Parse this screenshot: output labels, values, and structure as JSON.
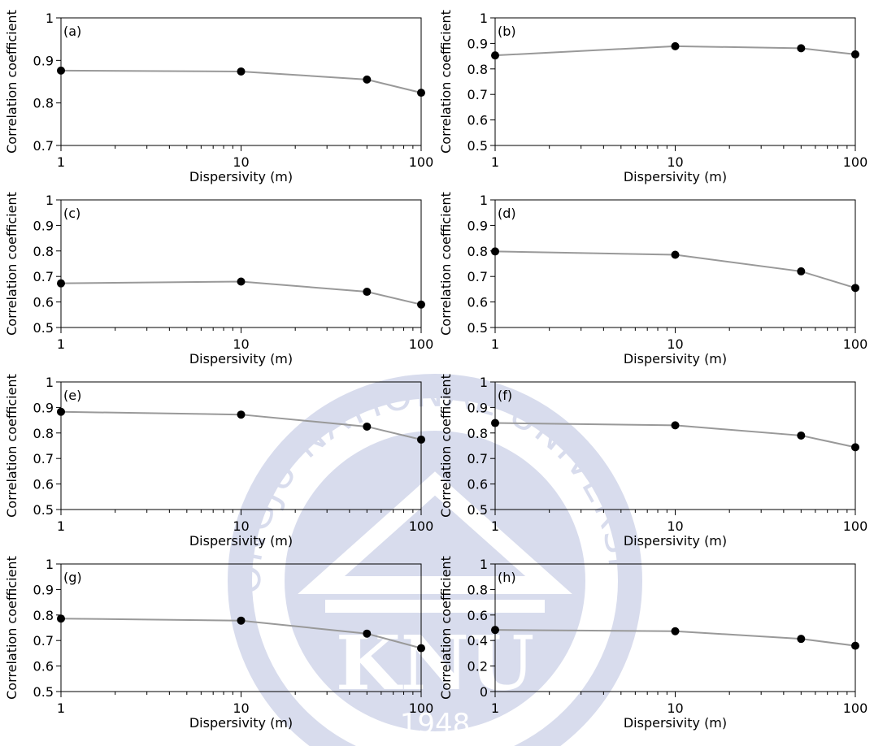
{
  "watermark": {
    "text_top": "KONGJU NATIONAL UNIVERSITY",
    "monogram": "KNU",
    "year": "1948",
    "color": "#b9c0df"
  },
  "style": {
    "line_color": "#999999",
    "marker_color": "#000000"
  },
  "chart_data": [
    {
      "panel": "(a)",
      "type": "line",
      "x": [
        1,
        10,
        50,
        100
      ],
      "y": [
        0.876,
        0.874,
        0.855,
        0.824
      ],
      "xscale": "log",
      "xlim": [
        1,
        100
      ],
      "ylim": [
        0.7,
        1.0
      ],
      "yticks": [
        0.7,
        0.8,
        0.9,
        1.0
      ],
      "ytick_labels": [
        "0.7",
        "0.8",
        "0.9",
        "1"
      ],
      "xticks": [
        1,
        10,
        100
      ],
      "xtick_labels": [
        "1",
        "10",
        "100"
      ],
      "xlabel": "Dispersivity (m)",
      "ylabel": "Correlation coefficient",
      "grid": false
    },
    {
      "panel": "(b)",
      "type": "line",
      "x": [
        1,
        10,
        50,
        100
      ],
      "y": [
        0.853,
        0.889,
        0.881,
        0.857
      ],
      "xscale": "log",
      "xlim": [
        1,
        100
      ],
      "ylim": [
        0.5,
        1.0
      ],
      "yticks": [
        0.5,
        0.6,
        0.7,
        0.8,
        0.9,
        1.0
      ],
      "ytick_labels": [
        "0.5",
        "0.6",
        "0.7",
        "0.8",
        "0.9",
        "1"
      ],
      "xticks": [
        1,
        10,
        100
      ],
      "xtick_labels": [
        "1",
        "10",
        "100"
      ],
      "xlabel": "Dispersivity (m)",
      "ylabel": "Correlation coefficient",
      "grid": false
    },
    {
      "panel": "(c)",
      "type": "line",
      "x": [
        1,
        10,
        50,
        100
      ],
      "y": [
        0.673,
        0.68,
        0.64,
        0.59
      ],
      "xscale": "log",
      "xlim": [
        1,
        100
      ],
      "ylim": [
        0.5,
        1.0
      ],
      "yticks": [
        0.5,
        0.6,
        0.7,
        0.8,
        0.9,
        1.0
      ],
      "ytick_labels": [
        "0.5",
        "0.6",
        "0.7",
        "0.8",
        "0.9",
        "1"
      ],
      "xticks": [
        1,
        10,
        100
      ],
      "xtick_labels": [
        "1",
        "10",
        "100"
      ],
      "xlabel": "Dispersivity (m)",
      "ylabel": "Correlation coefficient",
      "grid": false
    },
    {
      "panel": "(d)",
      "type": "line",
      "x": [
        1,
        10,
        50,
        100
      ],
      "y": [
        0.798,
        0.785,
        0.72,
        0.655
      ],
      "xscale": "log",
      "xlim": [
        1,
        100
      ],
      "ylim": [
        0.5,
        1.0
      ],
      "yticks": [
        0.5,
        0.6,
        0.7,
        0.8,
        0.9,
        1.0
      ],
      "ytick_labels": [
        "0.5",
        "0.6",
        "0.7",
        "0.8",
        "0.9",
        "1"
      ],
      "xticks": [
        1,
        10,
        100
      ],
      "xtick_labels": [
        "1",
        "10",
        "100"
      ],
      "xlabel": "Dispersivity (m)",
      "ylabel": "Correlation coefficient",
      "grid": false
    },
    {
      "panel": "(e)",
      "type": "line",
      "x": [
        1,
        10,
        50,
        100
      ],
      "y": [
        0.883,
        0.872,
        0.825,
        0.774
      ],
      "xscale": "log",
      "xlim": [
        1,
        100
      ],
      "ylim": [
        0.5,
        1.0
      ],
      "yticks": [
        0.5,
        0.6,
        0.7,
        0.8,
        0.9,
        1.0
      ],
      "ytick_labels": [
        "0.5",
        "0.6",
        "0.7",
        "0.8",
        "0.9",
        "1"
      ],
      "xticks": [
        1,
        10,
        100
      ],
      "xtick_labels": [
        "1",
        "10",
        "100"
      ],
      "xlabel": "Dispersivity (m)",
      "ylabel": "Correlation coefficient",
      "grid": false
    },
    {
      "panel": "(f)",
      "type": "line",
      "x": [
        1,
        10,
        50,
        100
      ],
      "y": [
        0.839,
        0.83,
        0.79,
        0.744
      ],
      "xscale": "log",
      "xlim": [
        1,
        100
      ],
      "ylim": [
        0.5,
        1.0
      ],
      "yticks": [
        0.5,
        0.6,
        0.7,
        0.8,
        0.9,
        1.0
      ],
      "ytick_labels": [
        "0.5",
        "0.6",
        "0.7",
        "0.8",
        "0.9",
        "1"
      ],
      "xticks": [
        1,
        10,
        100
      ],
      "xtick_labels": [
        "1",
        "10",
        "100"
      ],
      "xlabel": "Dispersivity (m)",
      "ylabel": "Correlation coefficient",
      "grid": false
    },
    {
      "panel": "(g)",
      "type": "line",
      "x": [
        1,
        10,
        50,
        100
      ],
      "y": [
        0.786,
        0.778,
        0.727,
        0.67
      ],
      "xscale": "log",
      "xlim": [
        1,
        100
      ],
      "ylim": [
        0.5,
        1.0
      ],
      "yticks": [
        0.5,
        0.6,
        0.7,
        0.8,
        0.9,
        1.0
      ],
      "ytick_labels": [
        "0.5",
        "0.6",
        "0.7",
        "0.8",
        "0.9",
        "1"
      ],
      "xticks": [
        1,
        10,
        100
      ],
      "xtick_labels": [
        "1",
        "10",
        "100"
      ],
      "xlabel": "Dispersivity (m)",
      "ylabel": "Correlation coefficient",
      "grid": false
    },
    {
      "panel": "(h)",
      "type": "line",
      "x": [
        1,
        10,
        50,
        100
      ],
      "y": [
        0.483,
        0.473,
        0.413,
        0.359
      ],
      "xscale": "log",
      "xlim": [
        1,
        100
      ],
      "ylim": [
        0.0,
        1.0
      ],
      "yticks": [
        0.0,
        0.2,
        0.4,
        0.6,
        0.8,
        1.0
      ],
      "ytick_labels": [
        "0",
        "0.2",
        "0.4",
        "0.6",
        "0.8",
        "1"
      ],
      "xticks": [
        1,
        10,
        100
      ],
      "xtick_labels": [
        "1",
        "10",
        "100"
      ],
      "xlabel": "Dispersivity (m)",
      "ylabel": "Correlation coefficient",
      "grid": false
    }
  ]
}
